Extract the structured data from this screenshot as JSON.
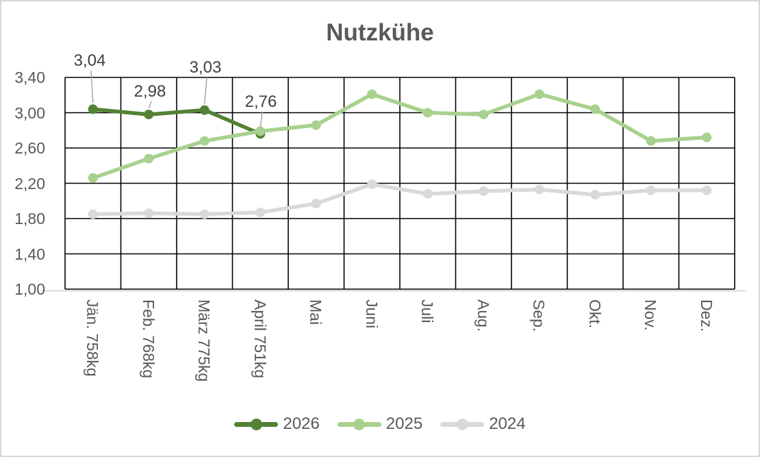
{
  "chart_data": {
    "type": "line",
    "title": "Nutzkühe",
    "categories": [
      "Jän. 758kg",
      "Feb. 768kg",
      "März 775kg",
      "April 751kg",
      "Mai",
      "Juni",
      "Juli",
      "Aug.",
      "Sep.",
      "Okt.",
      "Nov.",
      "Dez."
    ],
    "series": [
      {
        "name": "2026",
        "color": "#538135",
        "values": [
          3.04,
          2.98,
          3.03,
          2.76
        ]
      },
      {
        "name": "2025",
        "color": "#a9d18e",
        "values": [
          2.26,
          2.48,
          2.68,
          2.79,
          2.86,
          3.21,
          3.0,
          2.98,
          3.21,
          3.04,
          2.68,
          2.72
        ]
      },
      {
        "name": "2024",
        "color": "#d9d9d9",
        "values": [
          1.85,
          1.86,
          1.85,
          1.87,
          1.97,
          2.19,
          2.08,
          2.11,
          2.13,
          2.07,
          2.12,
          2.12
        ]
      }
    ],
    "annotations": [
      {
        "text": "3,04",
        "series": 0,
        "point": 0
      },
      {
        "text": "2,98",
        "series": 0,
        "point": 1
      },
      {
        "text": "3,03",
        "series": 0,
        "point": 2
      },
      {
        "text": "2,76",
        "series": 0,
        "point": 3
      }
    ],
    "yticks": [
      {
        "value": 3.4,
        "label": "3,40"
      },
      {
        "value": 3.0,
        "label": "3,00"
      },
      {
        "value": 2.6,
        "label": "2,60"
      },
      {
        "value": 2.2,
        "label": "2,20"
      },
      {
        "value": 1.8,
        "label": "1,80"
      },
      {
        "value": 1.4,
        "label": "1,40"
      },
      {
        "value": 1.0,
        "label": "1,00"
      }
    ],
    "ylim": [
      1.0,
      3.4
    ],
    "grid": true,
    "legend_position": "bottom",
    "colors": {
      "grid": "#000000",
      "axis_line": "#d9d9d9",
      "text": "#595959",
      "data_label_text": "#404040",
      "leader": "#a6a6a6",
      "background": "#ffffff",
      "frame_border": "#d6d6d6"
    }
  }
}
